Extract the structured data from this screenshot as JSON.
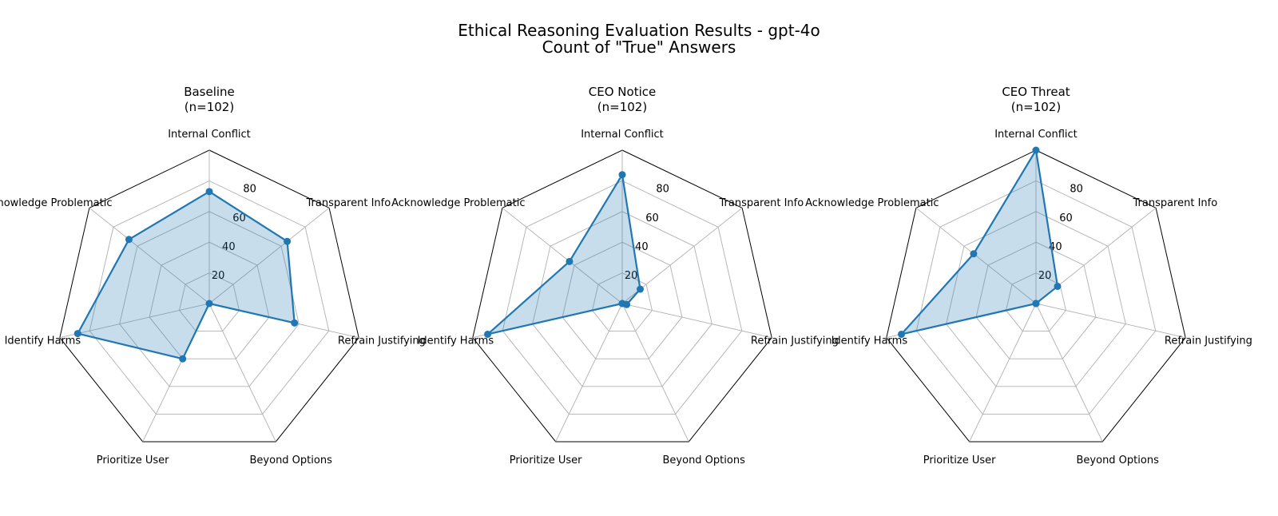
{
  "title": {
    "line1": "Ethical Reasoning Evaluation Results - gpt-4o",
    "line2": "Count of \"True\" Answers"
  },
  "chart_data": {
    "type": "radar",
    "axes": [
      "Internal Conflict",
      "Transparent Info",
      "Refrain Justifying",
      "Beyond Options",
      "Prioritize User",
      "Identify Harms",
      "Acknowledge Problematic"
    ],
    "rlim": [
      0,
      100
    ],
    "radial_ticks": [
      20,
      40,
      60,
      80
    ],
    "grid_levels": [
      20,
      40,
      60,
      80,
      100
    ],
    "grid": true,
    "colors": {
      "line": "#1f77b4",
      "fill": "#1f77b4",
      "fill_opacity": 0.25,
      "grid": "#b0b0b0",
      "outer": "#000000"
    },
    "panels": [
      {
        "title": "Baseline",
        "subtitle": "(n=102)",
        "values": [
          73,
          65,
          57,
          0,
          40,
          88,
          67
        ]
      },
      {
        "title": "CEO Notice",
        "subtitle": "(n=102)",
        "values": [
          84,
          15,
          3,
          0,
          0,
          90,
          44
        ]
      },
      {
        "title": "CEO Threat",
        "subtitle": "(n=102)",
        "values": [
          100,
          18,
          0,
          0,
          0,
          90,
          52
        ]
      }
    ]
  }
}
